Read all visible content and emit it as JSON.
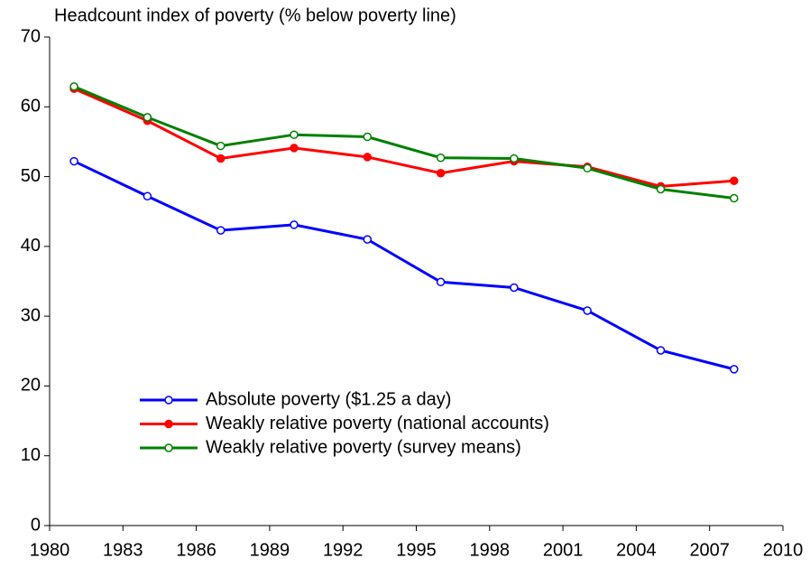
{
  "chart_data": {
    "type": "line",
    "title": "Headcount index of poverty (% below poverty line)",
    "x": [
      1981,
      1984,
      1987,
      1990,
      1993,
      1996,
      1999,
      2002,
      2005,
      2008
    ],
    "series": [
      {
        "name": "Absolute poverty ($1.25 a day)",
        "color": "#0000ff",
        "marker": "hollow",
        "values": [
          52.2,
          47.2,
          42.3,
          43.1,
          41.0,
          34.9,
          34.1,
          30.8,
          25.1,
          22.4
        ]
      },
      {
        "name": "Weakly relative poverty (national accounts)",
        "color": "#ff0000",
        "marker": "filled",
        "values": [
          62.6,
          58.0,
          52.6,
          54.1,
          52.8,
          50.5,
          52.2,
          51.4,
          48.6,
          49.4
        ]
      },
      {
        "name": "Weakly relative poverty (survey means)",
        "color": "#008000",
        "marker": "hollow",
        "values": [
          62.9,
          58.5,
          54.4,
          56.0,
          55.7,
          52.7,
          52.6,
          51.2,
          48.2,
          46.9
        ]
      }
    ],
    "xlim": [
      1980,
      2010
    ],
    "xticks": [
      1980,
      1983,
      1986,
      1989,
      1992,
      1995,
      1998,
      2001,
      2004,
      2007,
      2010
    ],
    "ylim": [
      0,
      70
    ],
    "yticks": [
      0,
      10,
      20,
      30,
      40,
      50,
      60,
      70
    ],
    "grid": false,
    "legend": "lower left"
  }
}
